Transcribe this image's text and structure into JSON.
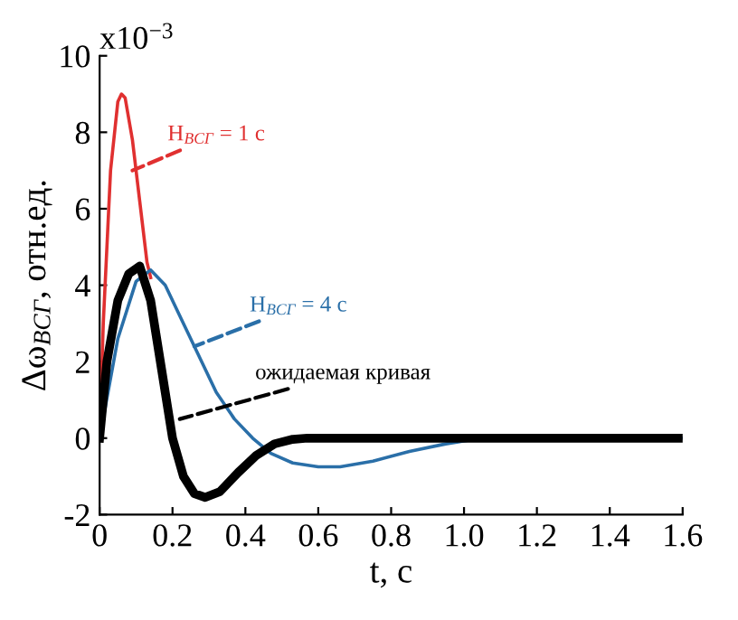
{
  "chart_data": {
    "type": "line",
    "xlabel": "t, с",
    "ylabel": "Δω$_{ВСГ}$, отн.ед.",
    "xlim": [
      0,
      1.6
    ],
    "xticks": [
      0,
      0.2,
      0.4,
      0.6,
      0.8,
      {
        "value": 1.0,
        "label": "1.0"
      },
      1.2,
      1.4,
      1.6
    ],
    "ylim": [
      -2,
      10
    ],
    "yticks": [
      -2,
      0,
      2,
      4,
      6,
      8,
      10
    ],
    "grid": false,
    "legend": false,
    "marker": "none",
    "line_style": "solid",
    "series": [
      {
        "color": "#e03030",
        "x": [
          0,
          0.01,
          0.03,
          0.05,
          0.06,
          0.07,
          0.09,
          0.11,
          0.13,
          0.14
        ],
        "values": [
          0,
          3,
          7.0,
          8.8,
          9.0,
          8.9,
          7.8,
          6.2,
          4.6,
          4.2
        ]
      },
      {
        "color": "#2a6fa8",
        "x": [
          0,
          0.05,
          0.1,
          0.14,
          0.18,
          0.22,
          0.27,
          0.32,
          0.37,
          0.42,
          0.47,
          0.53,
          0.6,
          0.66,
          0.75,
          0.85,
          0.95,
          1.05,
          1.6
        ],
        "values": [
          0,
          2.6,
          4.1,
          4.4,
          4.0,
          3.2,
          2.2,
          1.2,
          0.5,
          0,
          -0.4,
          -0.65,
          -0.75,
          -0.75,
          -0.6,
          -0.35,
          -0.15,
          0,
          0
        ]
      },
      {
        "color": "#000000",
        "x": [
          0,
          0.02,
          0.05,
          0.08,
          0.11,
          0.14,
          0.17,
          0.2,
          0.23,
          0.26,
          0.29,
          0.33,
          0.38,
          0.43,
          0.48,
          0.53,
          0.57,
          1.6
        ],
        "values": [
          0,
          2.0,
          3.6,
          4.3,
          4.5,
          3.6,
          1.8,
          0,
          -1.0,
          -1.45,
          -1.55,
          -1.4,
          -0.9,
          -0.45,
          -0.15,
          -0.03,
          0,
          0
        ]
      }
    ],
    "annotations": [
      {
        "text": "H$_{ВСГ}$ = 1 с",
        "x": 0.09,
        "y": 7.0
      },
      {
        "text": "H$_{ВСГ}$ = 4 с",
        "x": 0.26,
        "y": 2.4
      },
      {
        "text": "ожидаемая кривая",
        "x": 0.22,
        "y": 0.5
      },
      "x10$^{−3}$"
    ]
  }
}
